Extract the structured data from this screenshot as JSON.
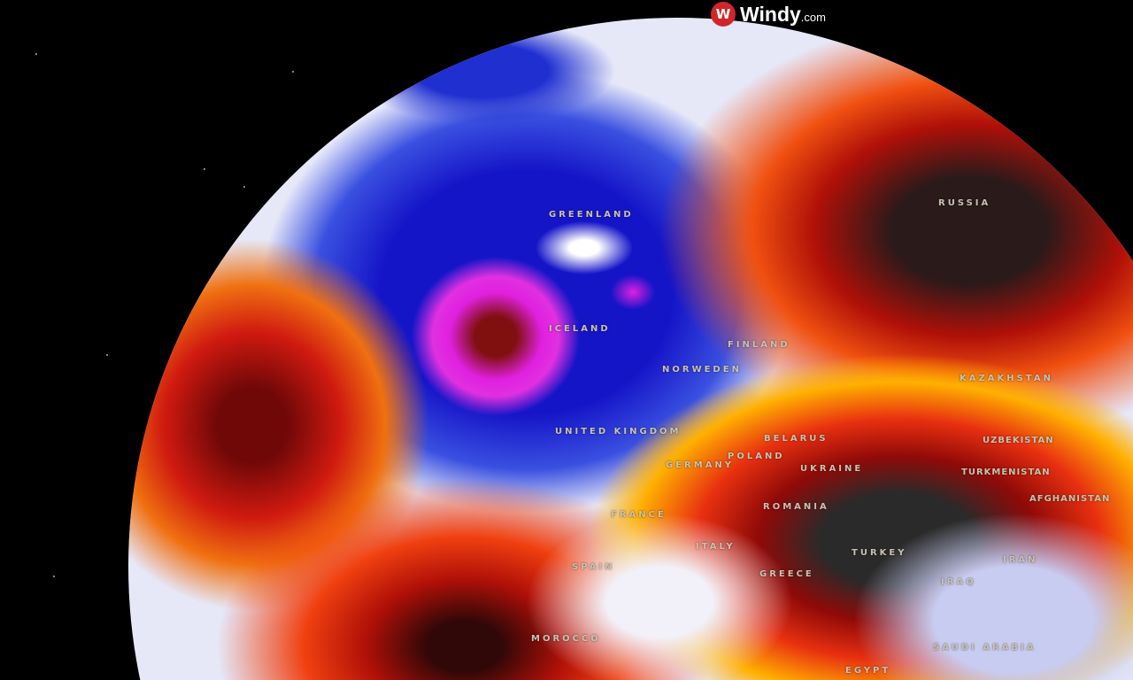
{
  "brand": {
    "logo_icon": "windy-logo-icon",
    "name": "Windy",
    "suffix": ".com"
  },
  "map": {
    "layer": "temperature anomaly globe",
    "colors": {
      "cold": "#1a1fd0",
      "very_cold": "#e020e0",
      "warm": "#ffcc00",
      "hot": "#e02010",
      "very_hot": "#2a2a2a",
      "neutral": "#e6e8f8"
    },
    "labels": [
      "GREENLAND",
      "RUSSIA",
      "ICELAND",
      "FINLAND",
      "NORWEDEN",
      "UNITED KINGDOM",
      "BELARUS",
      "POLAND",
      "GERMANY",
      "UKRAINE",
      "KAZAKHSTAN",
      "UZBEKISTAN",
      "TURKMENISTAN",
      "AFGHANISTAN",
      "ROMANIA",
      "FRANCE",
      "SPAIN",
      "ITALY",
      "GREECE",
      "TURKEY",
      "IRAN",
      "IRAQ",
      "MOROCCO",
      "SAUDI ARABIA",
      "EGYPT"
    ]
  }
}
